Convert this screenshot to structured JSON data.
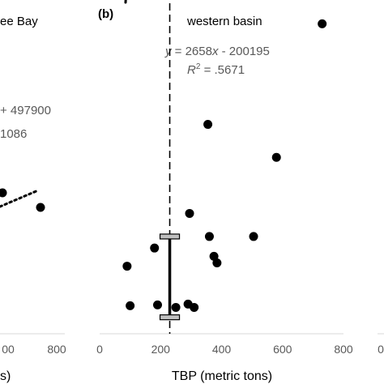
{
  "chart_data": [
    {
      "panel": "(a)",
      "type": "scatter",
      "title": "ee Bay",
      "xlim": [
        0,
        800
      ],
      "x_ticks": [
        "00",
        "800"
      ],
      "xlabel": "s)",
      "equation_fragments": [
        "+ 497900",
        "1086"
      ],
      "points": [
        {
          "x": 420,
          "y": 32000
        },
        {
          "x": 740,
          "y": 29500
        }
      ],
      "trendline": {
        "x": [
          415,
          600
        ],
        "y": [
          31000,
          34500
        ]
      }
    },
    {
      "panel": "(b)",
      "type": "scatter",
      "title": "western basin",
      "xlabel": "TBP (metric tons)",
      "xlim": [
        0,
        800
      ],
      "x_ticks": [
        "0",
        "200",
        "400",
        "600",
        "800"
      ],
      "ylim": [
        0,
        2000000
      ],
      "equation": {
        "y": "y",
        "eq": " = 2658",
        "x": "x",
        "rest": " - 200195"
      },
      "r2": {
        "r": "R",
        "sup": "2",
        "rest": " = .5671"
      },
      "reference_line_x": 230,
      "error_bar": {
        "x": 230,
        "low": 100000,
        "high": 590000
      },
      "points": [
        {
          "x": 730,
          "y": 1880000
        },
        {
          "x": 355,
          "y": 1270000
        },
        {
          "x": 580,
          "y": 1070000
        },
        {
          "x": 295,
          "y": 730000
        },
        {
          "x": 360,
          "y": 590000
        },
        {
          "x": 505,
          "y": 590000
        },
        {
          "x": 180,
          "y": 520000
        },
        {
          "x": 375,
          "y": 470000
        },
        {
          "x": 385,
          "y": 430000
        },
        {
          "x": 90,
          "y": 410000
        },
        {
          "x": 100,
          "y": 170000
        },
        {
          "x": 190,
          "y": 175000
        },
        {
          "x": 250,
          "y": 160000
        },
        {
          "x": 290,
          "y": 180000
        },
        {
          "x": 310,
          "y": 160000
        }
      ],
      "trendline": {
        "x": [
          85,
          735
        ],
        "y": 26000
      }
    }
  ],
  "panel_c": {
    "x_ticks": [
      "0"
    ]
  }
}
